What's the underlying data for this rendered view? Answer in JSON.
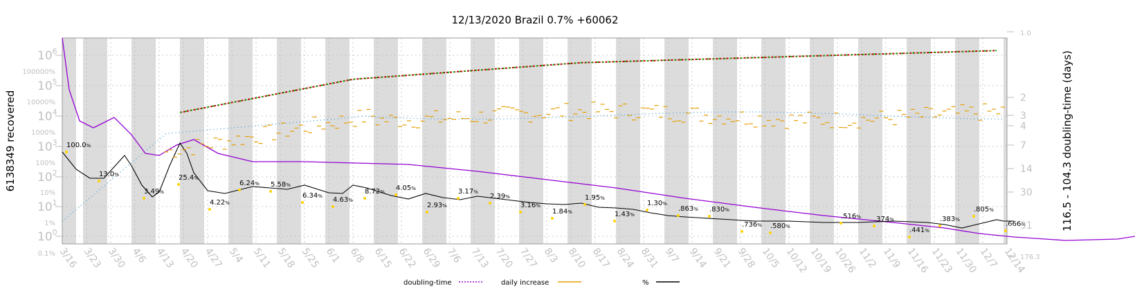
{
  "chart_data": {
    "type": "line",
    "title": "12/13/2020 Brazil 0.7% +60062",
    "ylabel_left": "6138349 recovered",
    "ylabel_right": "116.5 - 104.3 doubling-time (days)",
    "y_scale": "log",
    "grid": true,
    "legend_position": "bottom",
    "x_ticks": [
      "3/16",
      "3/23",
      "3/30",
      "4/6",
      "4/13",
      "4/20",
      "4/27",
      "5/4",
      "5/11",
      "5/18",
      "5/25",
      "6/1",
      "6/8",
      "6/15",
      "6/22",
      "6/29",
      "7/6",
      "7/13",
      "7/20",
      "7/27",
      "8/3",
      "8/10",
      "8/17",
      "8/24",
      "8/31",
      "9/7",
      "9/14",
      "9/21",
      "9/28",
      "10/5",
      "10/12",
      "10/19",
      "10/26",
      "11/2",
      "11/9",
      "11/16",
      "11/23",
      "11/30",
      "12/7",
      "12/14"
    ],
    "y_ticks_count": [
      "10^0",
      "10^1",
      "10^2",
      "10^3",
      "10^4",
      "10^5",
      "10^6"
    ],
    "y_ticks_percent": [
      "0.1%",
      "1%",
      "10%",
      "100%",
      "1000%",
      "10000%",
      "100000%"
    ],
    "y_ticks_right": [
      "1.0",
      "2",
      "3",
      "4",
      "7",
      "14",
      "30",
      "91",
      "176.3"
    ],
    "legend": [
      {
        "label": "doubling-time",
        "color": "#9400d3",
        "style": "dotted"
      },
      {
        "label": "daily increase",
        "color": "#e69f00",
        "style": "solid"
      },
      {
        "label": "%",
        "color": "#000000",
        "style": "solid"
      }
    ],
    "series": [
      {
        "name": "%",
        "color": "#000000",
        "points": [
          [
            "3/16",
            "100.0%"
          ],
          [
            "3/23",
            "13.0%"
          ],
          [
            "4/6",
            "3.49%"
          ],
          [
            "4/20",
            "25.4%"
          ],
          [
            "4/27",
            "4.22%"
          ],
          [
            "5/8",
            "6.24%"
          ],
          [
            "5/15",
            "5.58%"
          ],
          [
            "5/22",
            "6.34%"
          ],
          [
            "6/1",
            "4.63%"
          ],
          [
            "6/8",
            "8.72%"
          ],
          [
            "6/19",
            "4.05%"
          ],
          [
            "6/27",
            "2.93%"
          ],
          [
            "7/7",
            "3.17%"
          ],
          [
            "7/17",
            "2.39%"
          ],
          [
            "7/27",
            "3.16%"
          ],
          [
            "8/7",
            "1.84%"
          ],
          [
            "8/14",
            "1.95%"
          ],
          [
            "8/24",
            "1.43%"
          ],
          [
            "8/31",
            "1.30%"
          ],
          [
            "9/10",
            ".863%"
          ],
          [
            "9/18",
            ".830%"
          ],
          [
            "9/28",
            ".736%"
          ],
          [
            "10/3",
            ".580%"
          ],
          [
            "10/26",
            ".516%"
          ],
          [
            "11/5",
            ".374%"
          ],
          [
            "11/16",
            ".441%"
          ],
          [
            "11/24",
            ".383%"
          ],
          [
            "12/4",
            ".805%"
          ],
          [
            "12/13",
            ".666%"
          ]
        ]
      }
    ]
  }
}
